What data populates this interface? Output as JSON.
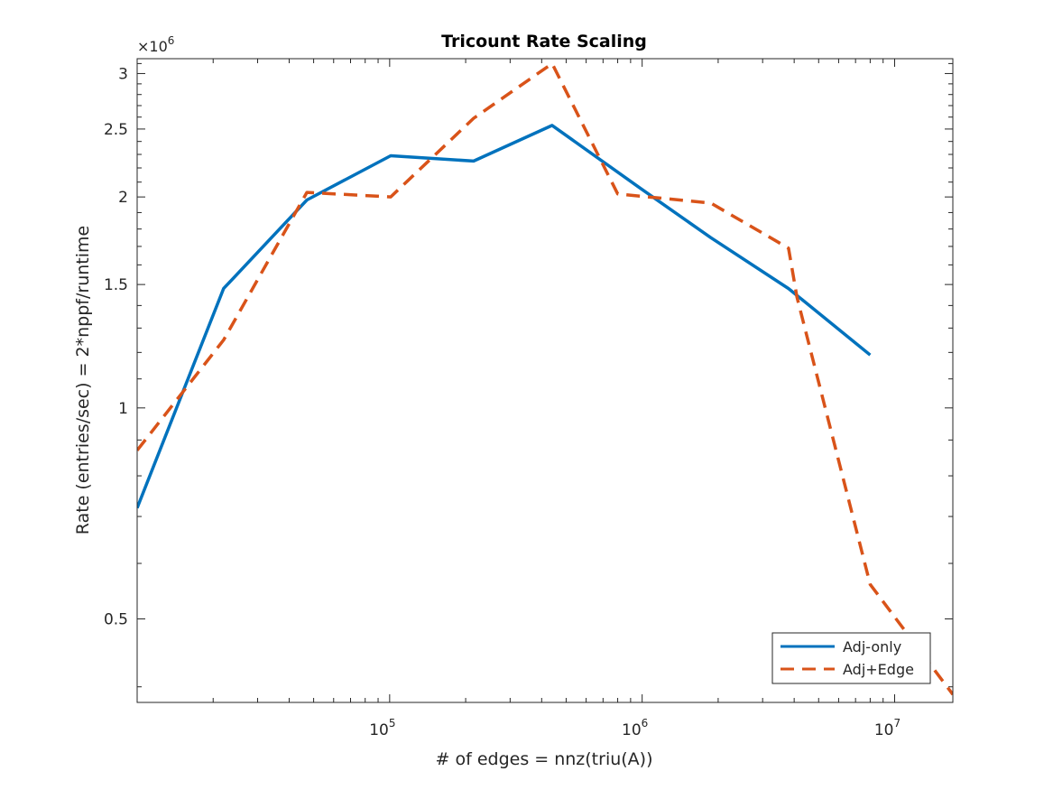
{
  "chart_data": {
    "type": "line",
    "title": "Tricount Rate Scaling",
    "xlabel": "# of edges = nnz(triu(A))",
    "ylabel": "Rate (entries/sec) = 2*nppf/runtime",
    "xscale": "log",
    "yscale": "log",
    "xlim": [
      10000,
      17000000
    ],
    "ylim": [
      380000,
      3150000
    ],
    "x_ticks": [
      {
        "value": 100000,
        "base": "10",
        "exp": "5"
      },
      {
        "value": 1000000,
        "base": "10",
        "exp": "6"
      },
      {
        "value": 10000000,
        "base": "10",
        "exp": "7"
      }
    ],
    "y_ticks": [
      {
        "value": 500000,
        "label": "0.5"
      },
      {
        "value": 1000000,
        "label": "1"
      },
      {
        "value": 1500000,
        "label": "1.5"
      },
      {
        "value": 2000000,
        "label": "2"
      },
      {
        "value": 2500000,
        "label": "2.5"
      },
      {
        "value": 3000000,
        "label": "3"
      }
    ],
    "y_exponent": {
      "base": "×10",
      "exp": "6"
    },
    "legend_position": "bottom-right",
    "series": [
      {
        "name": "Adj-only",
        "color": "#0072BD",
        "style": "solid",
        "x": [
          10000,
          22000,
          47000,
          101000,
          215000,
          440000,
          980000,
          1870000,
          3800000,
          8000000
        ],
        "y": [
          720000,
          1480000,
          1980000,
          2290000,
          2250000,
          2530000,
          2060000,
          1750000,
          1480000,
          1190000
        ]
      },
      {
        "name": "Adj+Edge",
        "color": "#D95319",
        "style": "dashed",
        "x": [
          10000,
          22000,
          47000,
          101000,
          215000,
          440000,
          800000,
          1870000,
          3800000,
          4100000,
          8000000,
          17000000
        ],
        "y": [
          870000,
          1250000,
          2030000,
          2000000,
          2590000,
          3100000,
          2020000,
          1960000,
          1690000,
          1440000,
          560000,
          390000
        ]
      }
    ]
  }
}
